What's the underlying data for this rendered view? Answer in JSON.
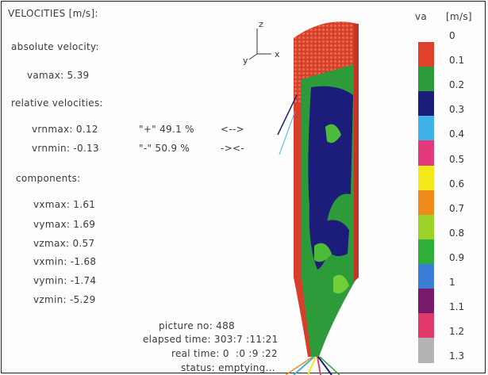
{
  "header": {
    "title": "VELOCITIES [m/s]:",
    "abs_label": "absolute velocity:",
    "rel_label": "relative velocities:",
    "comp_label": "components:"
  },
  "absolute": {
    "vamax": "vamax: 5.39"
  },
  "relative": {
    "vrnmax": "vrnmax: 0.12",
    "plus": "\"+\" 49.1 %",
    "plus_arrow": "<-->",
    "vrnmin": "vrnmin: -0.13",
    "minus": "\"-\" 50.9 %",
    "minus_arrow": "-><-"
  },
  "components": [
    "vxmax: 1.61",
    "vymax: 1.69",
    "vzmax: 0.57",
    "vxmin: -1.68",
    "vymin: -1.74",
    "vzmin: -5.29"
  ],
  "axes": {
    "z": "z",
    "y": "y",
    "x": "x"
  },
  "info": {
    "picture": "picture no: 488",
    "elapsed": "elapsed time: 303:7 :11:21",
    "real": "real time: 0  :0 :9 :22",
    "status": "status: emptying..."
  },
  "legend": {
    "label": "va",
    "unit": "[m/s]",
    "ticks": [
      "0",
      "0.1",
      "0.2",
      "0.3",
      "0.4",
      "0.5",
      "0.6",
      "0.7",
      "0.8",
      "0.9",
      "1",
      "1.1",
      "1.2",
      "1.3"
    ],
    "colors": [
      "#e0412a",
      "#2e9b3a",
      "#1c1c7a",
      "#3fb0e8",
      "#e23a7a",
      "#f2e81a",
      "#f08a1a",
      "#9bd22a",
      "#2fae3a",
      "#3a7ed8",
      "#7a1a6a",
      "#e03a6a",
      "#b4b4b4"
    ]
  }
}
